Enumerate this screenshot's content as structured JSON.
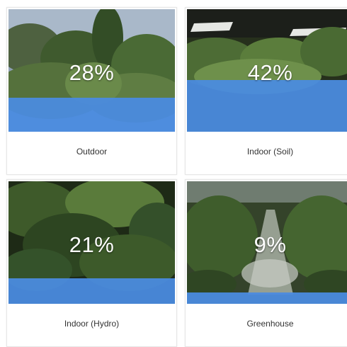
{
  "colors": {
    "fill_blue": "#4a8be0",
    "label_text": "#333333",
    "percent_text": "#ffffff"
  },
  "cards": [
    {
      "percent_label": "28%",
      "value_percent": 28,
      "category": "Outdoor"
    },
    {
      "percent_label": "42%",
      "value_percent": 42,
      "category": "Indoor (Soil)"
    },
    {
      "percent_label": "21%",
      "value_percent": 21,
      "category": "Indoor (Hydro)"
    },
    {
      "percent_label": "9%",
      "value_percent": 9,
      "category": "Greenhouse"
    }
  ]
}
